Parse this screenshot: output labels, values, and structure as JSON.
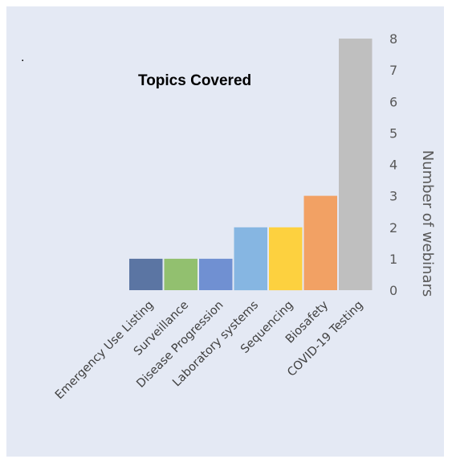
{
  "stray_mark": ".",
  "chart_data": {
    "type": "bar",
    "title": "Topics Covered",
    "ylabel": "Number of webinars",
    "xlabel": "",
    "categories": [
      "Emergency Use Listing",
      "Surveillance",
      "Disease Progression",
      "Laboratory systems",
      "Sequencing",
      "Biosafety",
      "COVID-19 Testing"
    ],
    "values": [
      1,
      1,
      1,
      2,
      2,
      3,
      8
    ],
    "ylim": [
      0,
      8
    ],
    "yticks": [
      "0",
      "1",
      "2",
      "3",
      "4",
      "5",
      "6",
      "7",
      "8"
    ],
    "y_axis_position": "right",
    "grid": false,
    "legend": "none",
    "bar_colors": [
      "#5b75a3",
      "#92c06f",
      "#7090d2",
      "#86b6e2",
      "#fdd13f",
      "#f2a164",
      "#bfbfbf"
    ],
    "background_color": "#e4e9f4"
  }
}
